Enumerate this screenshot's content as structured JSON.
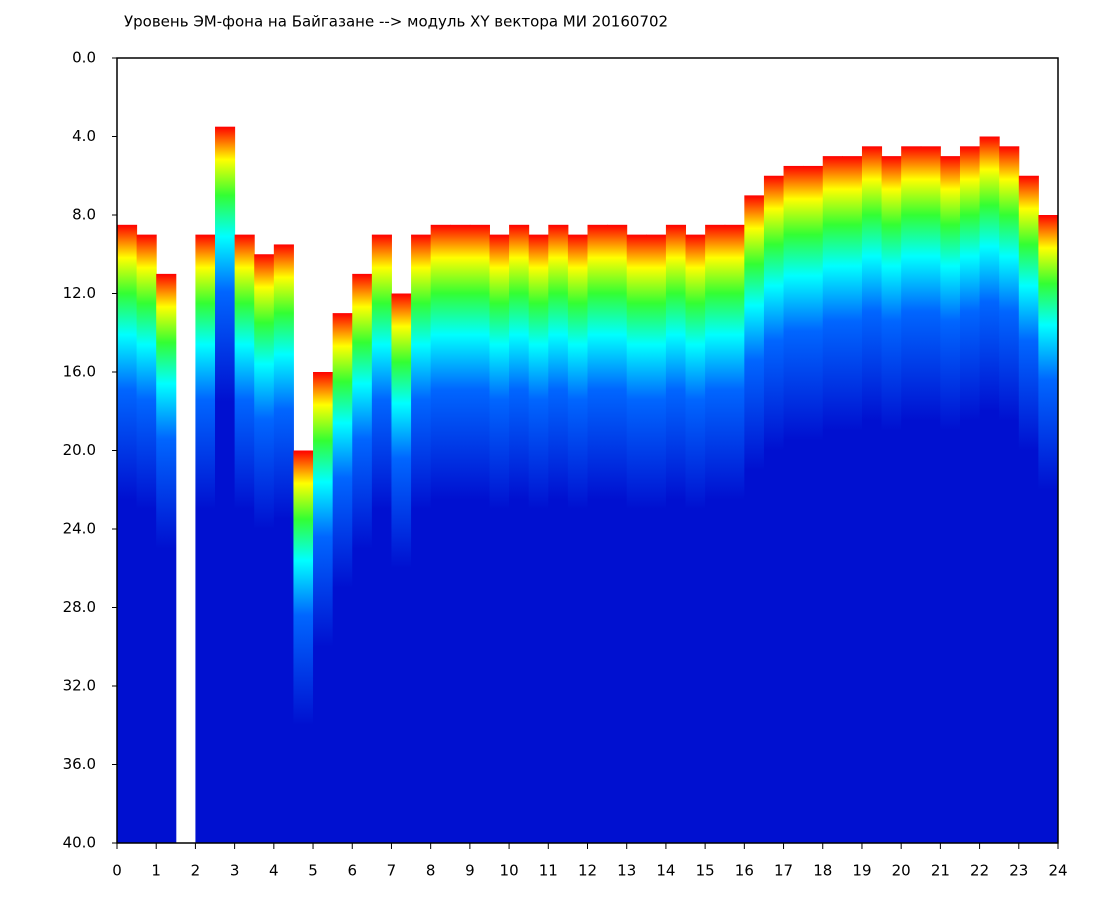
{
  "chart_data": {
    "type": "spectrogram",
    "title": "Уровень ЭМ-фона на Байгазане  --> модуль XY вектора МИ  20160702",
    "x": [
      0,
      0.5,
      1,
      1.5,
      2,
      2.5,
      3,
      3.5,
      4,
      4.5,
      5,
      5.5,
      6,
      6.5,
      7,
      7.5,
      8,
      8.5,
      9,
      9.5,
      10,
      10.5,
      11,
      11.5,
      12,
      12.5,
      13,
      13.5,
      14,
      14.5,
      15,
      15.5,
      16,
      16.5,
      17,
      17.5,
      18,
      18.5,
      19,
      19.5,
      20,
      20.5,
      21,
      21.5,
      22,
      22.5,
      23,
      23.5
    ],
    "values": [
      8.5,
      9,
      11,
      null,
      9,
      3.5,
      9,
      10,
      9.5,
      20,
      16,
      13,
      11,
      9,
      12,
      9,
      8.5,
      8.5,
      8.5,
      9,
      8.5,
      9,
      8.5,
      9,
      8.5,
      8.5,
      9,
      9,
      8.5,
      9,
      8.5,
      8.5,
      7,
      6,
      5.5,
      5.5,
      5,
      5,
      4.5,
      5,
      4.5,
      4.5,
      5,
      4.5,
      4,
      4.5,
      6,
      8
    ],
    "colormap": [
      "#ff0000",
      "#ffff00",
      "#33ff33",
      "#00ffff",
      "#0066ff",
      "#0010d0"
    ],
    "xlim": [
      0,
      24
    ],
    "xticks": [
      0,
      1,
      2,
      3,
      4,
      5,
      6,
      7,
      8,
      9,
      10,
      11,
      12,
      13,
      14,
      15,
      16,
      17,
      18,
      19,
      20,
      21,
      22,
      23,
      24
    ],
    "ylim": [
      0,
      40
    ],
    "y_inverted": true,
    "yticks": [
      {
        "value": 0,
        "label": "0.0"
      },
      {
        "value": 4,
        "label": "4.0"
      },
      {
        "value": 8,
        "label": "8.0"
      },
      {
        "value": 12,
        "label": "12.0"
      },
      {
        "value": 16,
        "label": "16.0"
      },
      {
        "value": 20,
        "label": "20.0"
      },
      {
        "value": 24,
        "label": "24.0"
      },
      {
        "value": 28,
        "label": "28.0"
      },
      {
        "value": 32,
        "label": "32.0"
      },
      {
        "value": 36,
        "label": "36.0"
      },
      {
        "value": 40,
        "label": "40.0"
      }
    ]
  }
}
